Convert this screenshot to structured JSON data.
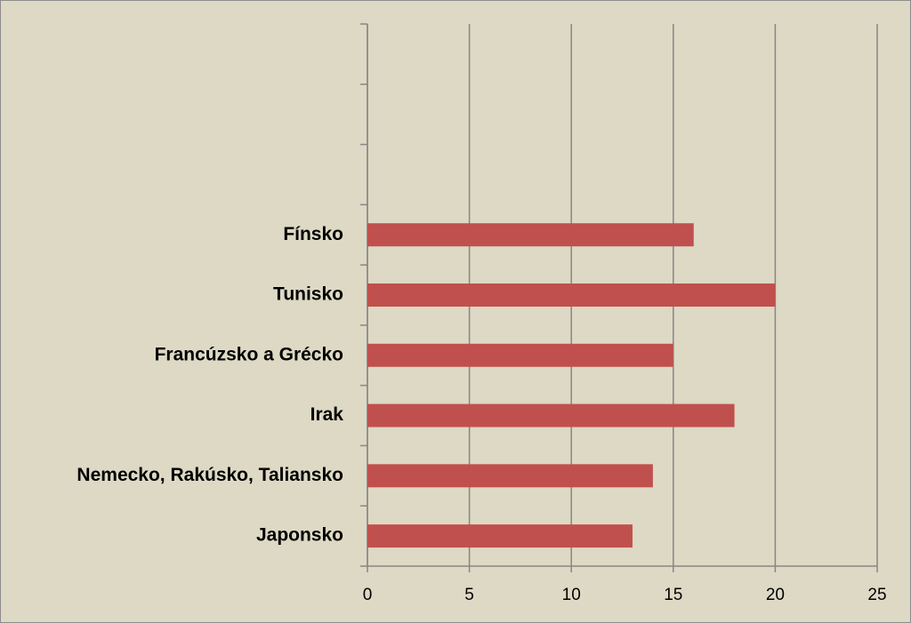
{
  "chart_data": {
    "type": "bar",
    "orientation": "horizontal",
    "categories": [
      null,
      null,
      null,
      "Fínsko",
      "Tunisko",
      "Francúzsko a Grécko",
      "Irak",
      "Nemecko, Rakúsko, Taliansko",
      "Japonsko"
    ],
    "values": [
      null,
      null,
      null,
      16,
      20,
      15,
      18,
      14,
      13
    ],
    "color": "#c0504d",
    "xlim": [
      0,
      25
    ],
    "xticks": [
      0,
      5,
      10,
      15,
      20,
      25
    ],
    "grid": true
  }
}
